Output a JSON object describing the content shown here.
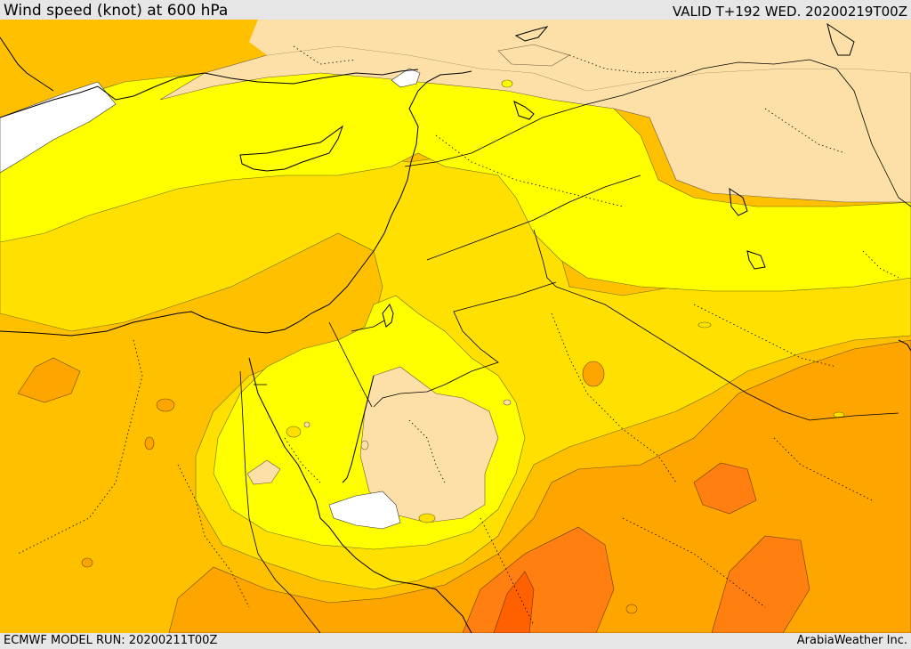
{
  "header": {
    "title": "Wind speed (knot) at 600 hPa",
    "valid": "VALID T+192 WED. 20200219T00Z"
  },
  "footer": {
    "model_run": "ECMWF MODEL RUN: 20200211T00Z",
    "credit": "ArabiaWeather Inc."
  },
  "map": {
    "region": "Eastern Mediterranean / Levant / Arabian Peninsula",
    "overlays": [
      "coastlines",
      "country-borders",
      "province-borders",
      "wind-speed-contours"
    ],
    "fill_colors": {
      "calm": "#ffffff",
      "very_light": "#fde0a8",
      "light": "#ffff00",
      "moderate": "#ffe000",
      "fresh": "#ffc000",
      "strong": "#ffa500",
      "very_strong": "#ff7f10",
      "gale": "#ff6000"
    }
  }
}
